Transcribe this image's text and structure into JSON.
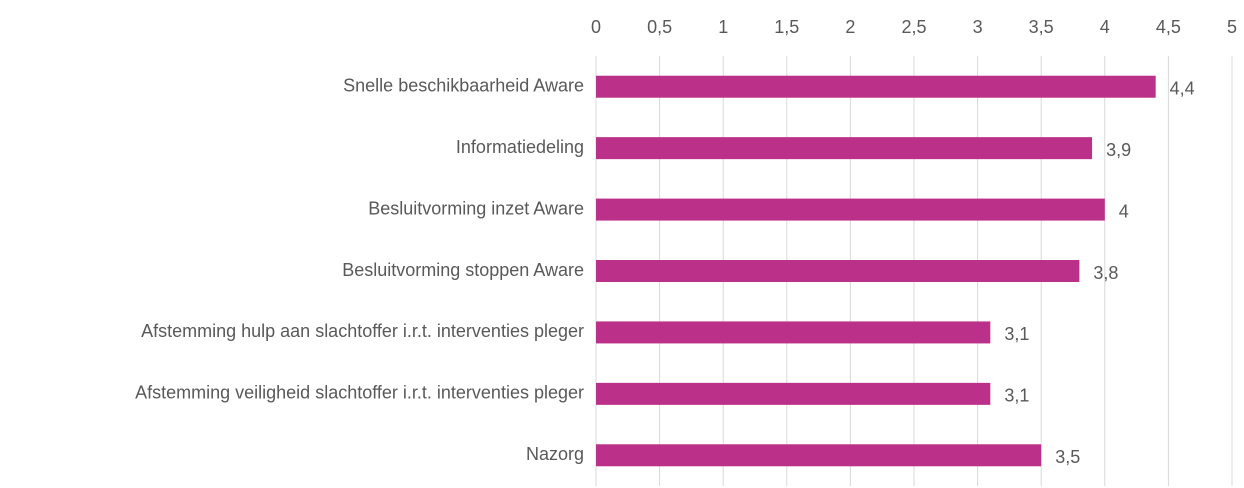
{
  "chart_data": {
    "type": "bar",
    "orientation": "horizontal",
    "categories": [
      "Snelle beschikbaarheid Aware",
      "Informatiedeling",
      "Besluitvorming inzet Aware",
      "Besluitvorming stoppen Aware",
      "Afstemming hulp aan slachtoffer i.r.t. interventies pleger",
      "Afstemming veiligheid slachtoffer i.r.t. interventies pleger",
      "Nazorg"
    ],
    "values": [
      4.4,
      3.9,
      4,
      3.8,
      3.1,
      3.1,
      3.5
    ],
    "value_labels": [
      "4,4",
      "3,9",
      "4",
      "3,8",
      "3,1",
      "3,1",
      "3,5"
    ],
    "color": "#bb3089",
    "xlim": [
      0,
      5
    ],
    "xticks": [
      0,
      {
        "value": 0.5,
        "label": "0,5"
      },
      1,
      {
        "value": 1.5,
        "label": "1,5"
      },
      2,
      {
        "value": 2.5,
        "label": "2,5"
      },
      3,
      {
        "value": 3.5,
        "label": "3,5"
      },
      4,
      {
        "value": 4.5,
        "label": "4,5"
      },
      5
    ],
    "grid": true
  }
}
